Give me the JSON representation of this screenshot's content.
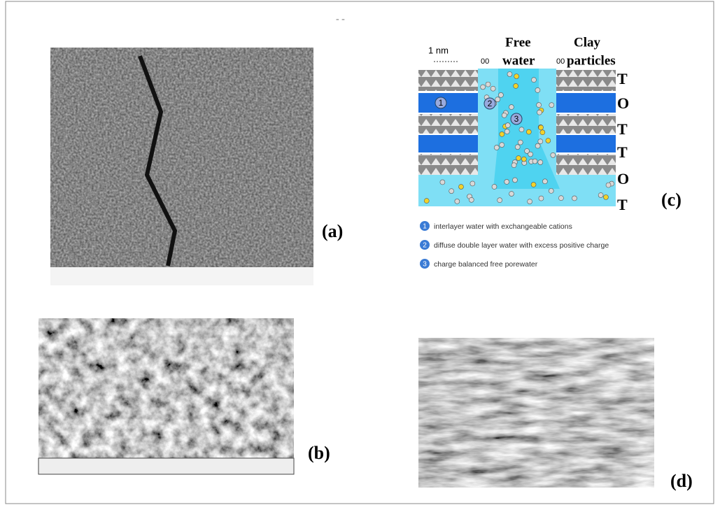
{
  "panels": {
    "a": "(a)",
    "b": "(b)",
    "c": "(c)",
    "d": "(d)"
  },
  "diagram": {
    "scale": "1 nm",
    "free_water": [
      "Free",
      "water"
    ],
    "clay_particles": [
      "Clay",
      "particles"
    ],
    "markers": [
      "00",
      "00"
    ],
    "layers": [
      "T",
      "O",
      "T",
      "T",
      "O",
      "T"
    ],
    "legend": [
      {
        "num": "1",
        "text": "interlayer water with exchangeable cations"
      },
      {
        "num": "2",
        "text": "diffuse double layer water with excess positive charge"
      },
      {
        "num": "3",
        "text": "charge balanced free porewater"
      }
    ],
    "zones": [
      "1",
      "2",
      "3"
    ]
  }
}
